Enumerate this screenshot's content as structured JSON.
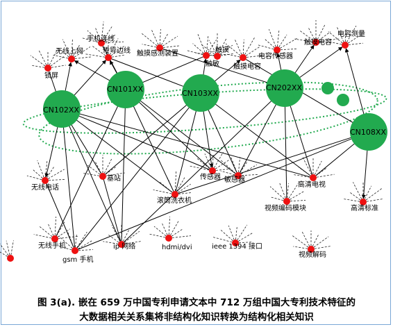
{
  "hubs": [
    {
      "id": "cn102",
      "label": "CN102XX"
    },
    {
      "id": "cn101",
      "label": "CN101XX"
    },
    {
      "id": "cn103",
      "label": "CN103XX"
    },
    {
      "id": "cn202",
      "label": "CN202XX"
    },
    {
      "id": "cn108",
      "label": "CN108XX"
    }
  ],
  "features": [
    {
      "id": "lockscreen",
      "label": "锁屏"
    },
    {
      "id": "wireless-internet",
      "label": "无线上网"
    },
    {
      "id": "phone-connect",
      "label": "手机连线"
    },
    {
      "id": "sensor-edge",
      "label": "传导边线"
    },
    {
      "id": "touch-detect",
      "label": "触摸感测装置"
    },
    {
      "id": "touch",
      "label": "触摸"
    },
    {
      "id": "touch-feel",
      "label": "触敏"
    },
    {
      "id": "touch-capacitance",
      "label": "触摸电容"
    },
    {
      "id": "capacitive-sensor",
      "label": "电容传感器"
    },
    {
      "id": "touch-cap-2",
      "label": "触摸电容"
    },
    {
      "id": "capacitance-measure",
      "label": "电容测量"
    },
    {
      "id": "wireless-phone",
      "label": "无线电话"
    },
    {
      "id": "base-station",
      "label": "基站"
    },
    {
      "id": "sensor",
      "label": "传感器"
    },
    {
      "id": "sensitive",
      "label": "敏感器"
    },
    {
      "id": "hdtv",
      "label": "高清电视"
    },
    {
      "id": "drum-washer",
      "label": "滚筒洗衣机"
    },
    {
      "id": "video-encoder",
      "label": "视频编码模块"
    },
    {
      "id": "hd-standard",
      "label": "高清标准"
    },
    {
      "id": "wireless-handset",
      "label": "无线手机"
    },
    {
      "id": "gsm-phone",
      "label": "gsm 手机"
    },
    {
      "id": "ip-network",
      "label": "ip 网络"
    },
    {
      "id": "hdmi-dvi",
      "label": "hdmi/dvi"
    },
    {
      "id": "ieee1394",
      "label": "ieee 1394 接口"
    },
    {
      "id": "video-decode",
      "label": "视频解码"
    }
  ],
  "colors": {
    "hub": "#22aa4f",
    "feature": "#ee1111",
    "border": "#7aa7d6",
    "ellipse": "#22aa4f"
  },
  "caption": {
    "line1": "图 3(a). 嵌在 659 万中国专利申请文本中 712 万组中国大专利技术特征的",
    "line2": "大数据相关关系集将非结构化知识转换为结构化相关知识"
  }
}
